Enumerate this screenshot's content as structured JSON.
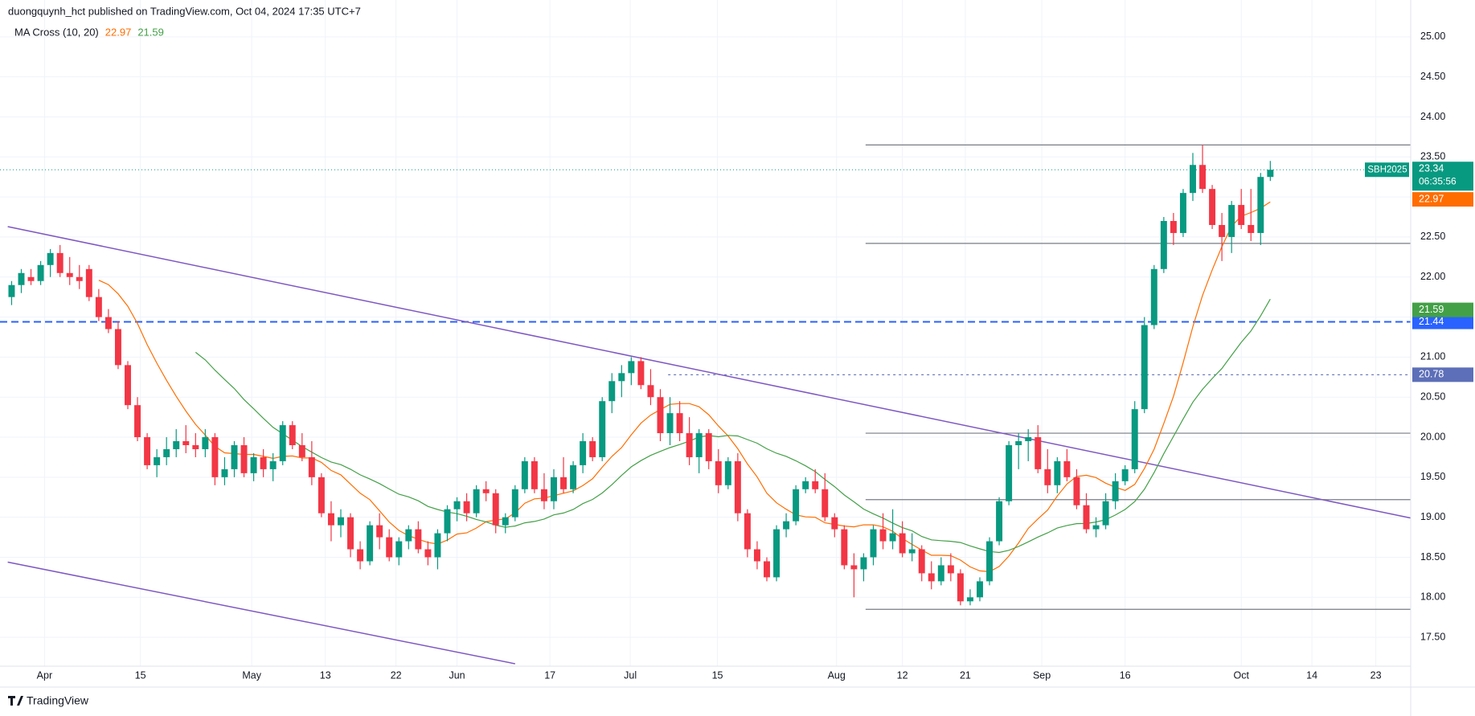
{
  "chart_data": {
    "type": "candlestick",
    "attribution": "duongquynh_hct published on TradingView.com, Oct 04, 2024 17:35 UTC+7",
    "indicator": {
      "label": "MA Cross (10, 20)",
      "periods": [
        10,
        20
      ],
      "colors": [
        "#ff6d00",
        "#43a047"
      ],
      "values": [
        22.97,
        21.59
      ]
    },
    "countdown": "06:35:56",
    "brand": "TradingView",
    "up_color": "#089981",
    "down_color": "#f23645",
    "series": [
      {
        "name": "SBH2025",
        "open": [
          21.75,
          21.9,
          22.0,
          21.95,
          22.15,
          22.3,
          22.05,
          22.0,
          22.1,
          21.75,
          21.5,
          21.35,
          20.9,
          20.4,
          20.0,
          19.65,
          19.75,
          19.85,
          19.95,
          19.9,
          19.85,
          20.0,
          19.5,
          19.6,
          19.9,
          19.55,
          19.75,
          19.6,
          19.7,
          20.15,
          19.9,
          19.75,
          19.5,
          19.05,
          18.9,
          19.0,
          18.6,
          18.45,
          18.9,
          18.75,
          18.5,
          18.7,
          18.85,
          18.6,
          18.5,
          18.8,
          19.1,
          19.2,
          19.05,
          19.35,
          19.3,
          18.9,
          19.0,
          19.35,
          19.7,
          19.35,
          19.2,
          19.5,
          19.35,
          19.65,
          19.95,
          19.75,
          20.45,
          20.7,
          20.8,
          20.95,
          20.65,
          20.5,
          20.05,
          20.3,
          20.05,
          19.75,
          20.05,
          19.7,
          19.4,
          19.7,
          19.05,
          18.6,
          18.45,
          18.25,
          18.85,
          18.95,
          19.35,
          19.45,
          19.35,
          19.0,
          18.85,
          18.4,
          18.35,
          18.5,
          18.85,
          18.7,
          18.8,
          18.55,
          18.6,
          18.3,
          18.2,
          18.4,
          18.3,
          17.95,
          18.0,
          18.2,
          18.7,
          19.2,
          19.9,
          19.95,
          20.0,
          19.6,
          19.4,
          19.7,
          19.5,
          19.15,
          18.85,
          18.9,
          19.2,
          19.45,
          19.6,
          20.35,
          21.4,
          22.1,
          22.7,
          22.55,
          23.05,
          23.4,
          23.1,
          22.65,
          22.5,
          22.9,
          22.65,
          22.55,
          23.25
        ],
        "high": [
          21.95,
          22.1,
          22.1,
          22.2,
          22.35,
          22.4,
          22.25,
          22.15,
          22.15,
          21.85,
          21.6,
          21.45,
          20.95,
          20.5,
          20.05,
          19.85,
          20.0,
          20.1,
          20.15,
          20.05,
          20.1,
          20.05,
          19.75,
          19.95,
          20.0,
          19.8,
          19.85,
          19.8,
          20.2,
          20.2,
          20.05,
          19.95,
          19.55,
          19.2,
          19.1,
          19.05,
          18.7,
          18.95,
          19.05,
          18.85,
          18.75,
          18.9,
          18.95,
          18.7,
          18.85,
          19.15,
          19.25,
          19.3,
          19.4,
          19.45,
          19.35,
          19.05,
          19.4,
          19.75,
          19.75,
          19.55,
          19.6,
          19.75,
          19.7,
          20.05,
          20.0,
          20.5,
          20.8,
          20.9,
          21.0,
          21.0,
          20.85,
          20.6,
          20.5,
          20.45,
          20.25,
          20.1,
          20.1,
          19.85,
          19.75,
          19.8,
          19.1,
          18.7,
          18.5,
          18.9,
          19.05,
          19.4,
          19.5,
          19.6,
          19.55,
          19.05,
          18.9,
          18.55,
          18.55,
          18.9,
          19.05,
          19.1,
          18.95,
          18.8,
          18.65,
          18.45,
          18.5,
          18.55,
          18.35,
          18.1,
          18.25,
          18.75,
          19.25,
          19.95,
          20.05,
          20.1,
          20.15,
          19.85,
          19.75,
          19.85,
          19.6,
          19.3,
          19.0,
          19.3,
          19.55,
          19.65,
          20.45,
          21.5,
          22.15,
          22.75,
          22.8,
          23.1,
          23.55,
          23.65,
          23.15,
          22.8,
          22.95,
          23.1,
          23.1,
          23.3,
          23.45
        ],
        "low": [
          21.65,
          21.8,
          21.9,
          21.9,
          22.0,
          22.0,
          21.9,
          21.85,
          21.7,
          21.45,
          21.3,
          20.85,
          20.35,
          19.95,
          19.6,
          19.5,
          19.65,
          19.75,
          19.8,
          19.75,
          19.75,
          19.4,
          19.4,
          19.5,
          19.5,
          19.45,
          19.5,
          19.45,
          19.65,
          19.85,
          19.7,
          19.4,
          19.0,
          18.7,
          18.75,
          18.5,
          18.35,
          18.4,
          18.6,
          18.45,
          18.4,
          18.6,
          18.55,
          18.4,
          18.35,
          18.7,
          18.95,
          18.95,
          19.0,
          19.2,
          18.8,
          18.8,
          18.95,
          19.3,
          19.3,
          19.1,
          19.1,
          19.3,
          19.3,
          19.55,
          19.7,
          19.7,
          20.3,
          20.5,
          20.65,
          20.6,
          20.4,
          19.95,
          19.9,
          19.95,
          19.65,
          19.55,
          19.6,
          19.3,
          19.35,
          18.95,
          18.5,
          18.35,
          18.2,
          18.2,
          18.75,
          18.9,
          19.3,
          19.3,
          18.95,
          18.75,
          18.35,
          18.0,
          18.2,
          18.4,
          18.6,
          18.6,
          18.5,
          18.45,
          18.2,
          18.1,
          18.15,
          18.2,
          17.9,
          17.9,
          17.95,
          18.15,
          18.65,
          19.15,
          19.6,
          19.7,
          19.55,
          19.3,
          19.3,
          19.45,
          19.1,
          18.8,
          18.75,
          18.85,
          19.1,
          19.4,
          19.55,
          20.3,
          21.35,
          22.05,
          22.4,
          22.5,
          22.95,
          23.05,
          22.6,
          22.2,
          22.3,
          22.6,
          22.45,
          22.4,
          23.2
        ],
        "close": [
          21.9,
          22.05,
          21.95,
          22.15,
          22.3,
          22.05,
          22.0,
          21.95,
          21.75,
          21.5,
          21.35,
          20.9,
          20.4,
          20.0,
          19.65,
          19.75,
          19.85,
          19.95,
          19.9,
          19.85,
          20.0,
          19.5,
          19.6,
          19.9,
          19.55,
          19.75,
          19.6,
          19.7,
          20.15,
          19.9,
          19.75,
          19.5,
          19.05,
          18.9,
          19.0,
          18.6,
          18.45,
          18.9,
          18.75,
          18.5,
          18.7,
          18.85,
          18.6,
          18.5,
          18.8,
          19.1,
          19.2,
          19.05,
          19.35,
          19.3,
          18.9,
          19.0,
          19.35,
          19.7,
          19.35,
          19.2,
          19.5,
          19.35,
          19.65,
          19.95,
          19.75,
          20.45,
          20.7,
          20.8,
          20.95,
          20.65,
          20.5,
          20.05,
          20.3,
          20.05,
          19.75,
          20.05,
          19.7,
          19.4,
          19.7,
          19.05,
          18.6,
          18.45,
          18.25,
          18.85,
          18.95,
          19.35,
          19.45,
          19.35,
          19.0,
          18.85,
          18.4,
          18.35,
          18.5,
          18.85,
          18.7,
          18.8,
          18.55,
          18.6,
          18.3,
          18.2,
          18.4,
          18.3,
          17.95,
          18.0,
          18.2,
          18.7,
          19.2,
          19.9,
          19.95,
          20.0,
          19.6,
          19.4,
          19.7,
          19.5,
          19.15,
          18.85,
          18.9,
          19.2,
          19.45,
          19.6,
          20.35,
          21.4,
          22.1,
          22.7,
          22.55,
          23.05,
          23.4,
          23.1,
          22.65,
          22.5,
          22.9,
          22.65,
          22.55,
          23.25,
          23.34
        ]
      }
    ],
    "xlim": [
      -1.2,
      144.5
    ],
    "ylim": [
      17.14,
      25.46
    ],
    "xticks": [
      {
        "value": 3.4,
        "label": "Apr"
      },
      {
        "value": 13.3,
        "label": "15"
      },
      {
        "value": 24.8,
        "label": "May"
      },
      {
        "value": 32.4,
        "label": "13"
      },
      {
        "value": 39.7,
        "label": "22"
      },
      {
        "value": 46,
        "label": "Jun"
      },
      {
        "value": 55.6,
        "label": "17"
      },
      {
        "value": 63.9,
        "label": "Jul"
      },
      {
        "value": 72.9,
        "label": "15"
      },
      {
        "value": 85.2,
        "label": "Aug"
      },
      {
        "value": 92,
        "label": "12"
      },
      {
        "value": 98.5,
        "label": "21"
      },
      {
        "value": 106.4,
        "label": "Sep"
      },
      {
        "value": 115,
        "label": "16"
      },
      {
        "value": 127,
        "label": "Oct"
      },
      {
        "value": 134.3,
        "label": "14"
      },
      {
        "value": 140.9,
        "label": "23"
      }
    ],
    "yticks": [
      {
        "value": 17.5,
        "label": "17.50"
      },
      {
        "value": 18,
        "label": "18.00"
      },
      {
        "value": 18.5,
        "label": "18.50"
      },
      {
        "value": 19,
        "label": "19.00"
      },
      {
        "value": 19.5,
        "label": "19.50"
      },
      {
        "value": 20,
        "label": "20.00"
      },
      {
        "value": 20.5,
        "label": "20.50"
      },
      {
        "value": 21,
        "label": "21.00"
      },
      {
        "value": 21.5,
        "label": "21.50"
      },
      {
        "value": 22,
        "label": "22.00"
      },
      {
        "value": 22.5,
        "label": "22.50"
      },
      {
        "value": 23,
        "label": "23.00"
      },
      {
        "value": 23.5,
        "label": "23.50"
      },
      {
        "value": 24,
        "label": "24.00"
      },
      {
        "value": 24.5,
        "label": "24.50"
      },
      {
        "value": 25,
        "label": "25.00"
      }
    ],
    "grid": true,
    "levels": {
      "from": 88.2,
      "values": [
        23.65,
        22.42,
        20.05,
        19.22,
        17.85
      ],
      "color": "#787b86"
    },
    "marked_levels": [
      {
        "value": 21.44,
        "from": -1.2,
        "color": "#2962ff",
        "style": "dashed"
      },
      {
        "value": 20.78,
        "from": 67.8,
        "color": "#5d6fb8",
        "style": "dotted"
      }
    ],
    "trendlines": [
      {
        "x": [
          -0.4,
          144.5
        ],
        "y": [
          22.63,
          18.99
        ],
        "color": "#7e57c2"
      },
      {
        "x": [
          -0.4,
          52.0
        ],
        "y": [
          18.44,
          17.17
        ],
        "color": "#7e57c2"
      }
    ]
  }
}
